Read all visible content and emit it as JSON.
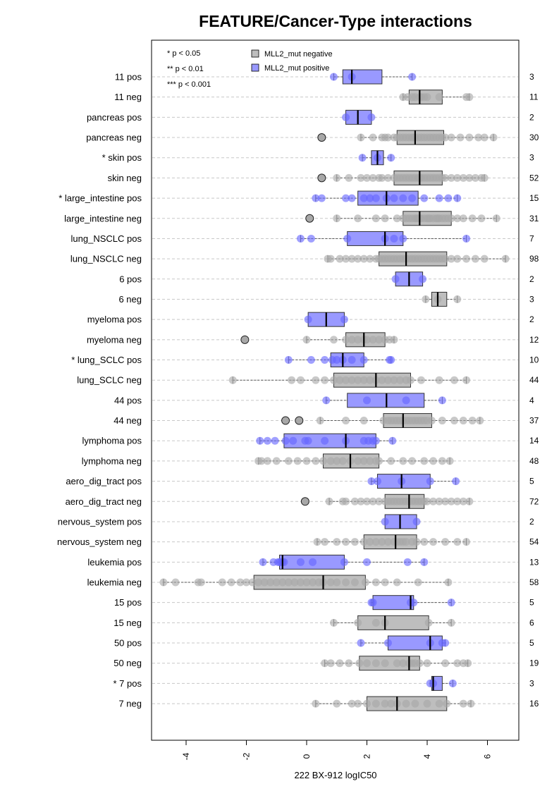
{
  "chart_data": {
    "type": "boxplot",
    "title": "FEATURE/Cancer-Type interactions",
    "xlabel": "222 BX-912 logIC50",
    "ylabel": "",
    "xlim": [
      -5,
      7
    ],
    "xticks": [
      -4,
      -2,
      0,
      2,
      4,
      6
    ],
    "xtick_labels": [
      "-4",
      "-2",
      "0",
      "2",
      "4",
      "6"
    ],
    "grid": "dashed horizontal",
    "legend": {
      "placement": "top-left",
      "significance": [
        "* p < 0.05",
        "** p < 0.01",
        "*** p < 0.001"
      ],
      "groups": [
        {
          "label": "MLL2_mut negative",
          "color": "#bebebe"
        },
        {
          "label": "MLL2_mut positive",
          "color": "#9999ff"
        }
      ]
    },
    "colors": {
      "negative": "#bebebe",
      "positive": "#9999ff",
      "negative_point": "#a8a8a8",
      "positive_point": "#6666ff"
    },
    "rows": [
      {
        "label": "11 pos",
        "count": "3",
        "group": "positive",
        "stats": [
          0.9,
          1.2,
          1.5,
          2.5,
          3.5
        ],
        "points": [
          0.9,
          1.5,
          3.5
        ],
        "outliers": []
      },
      {
        "label": "11 neg",
        "count": "11",
        "group": "negative",
        "stats": [
          3.2,
          3.4,
          3.75,
          4.5,
          5.4
        ],
        "points": [
          3.2,
          3.35,
          3.5,
          3.6,
          3.75,
          3.8,
          3.9,
          4.0,
          4.4,
          5.3,
          5.4
        ],
        "outliers": []
      },
      {
        "label": "pancreas pos",
        "count": "2",
        "group": "positive",
        "stats": [
          1.3,
          1.3,
          1.7,
          2.15,
          2.15
        ],
        "points": [
          1.3,
          2.15
        ],
        "outliers": []
      },
      {
        "label": "pancreas neg",
        "count": "30",
        "group": "negative",
        "stats": [
          1.8,
          3.0,
          3.6,
          4.55,
          6.2
        ],
        "points": [
          1.8,
          2.2,
          2.5,
          2.7,
          2.9,
          3.0,
          3.1,
          3.2,
          3.3,
          3.4,
          3.5,
          3.55,
          3.6,
          3.7,
          3.8,
          3.9,
          4.0,
          4.1,
          4.2,
          4.3,
          4.4,
          4.5,
          4.6,
          4.8,
          5.1,
          5.4,
          5.7,
          5.9,
          6.2,
          2.6
        ],
        "outliers": [
          0.5
        ]
      },
      {
        "label": "* skin pos",
        "count": "3",
        "group": "positive",
        "stats": [
          1.85,
          2.15,
          2.35,
          2.55,
          2.8
        ],
        "points": [
          1.85,
          2.35,
          2.8
        ],
        "outliers": []
      },
      {
        "label": "skin neg",
        "count": "52",
        "group": "negative",
        "stats": [
          1.0,
          2.9,
          3.75,
          4.5,
          5.9
        ],
        "points": [
          1.0,
          1.4,
          1.8,
          2.0,
          2.2,
          2.4,
          2.5,
          2.7,
          2.9,
          3.0,
          3.1,
          3.2,
          3.3,
          3.4,
          3.5,
          3.6,
          3.7,
          3.75,
          3.8,
          3.9,
          4.0,
          4.1,
          4.2,
          4.3,
          4.4,
          4.5,
          4.6,
          4.8,
          5.0,
          5.2,
          5.4,
          5.6,
          5.8,
          5.9
        ],
        "outliers": [
          0.5
        ]
      },
      {
        "label": "* large_intestine pos",
        "count": "15",
        "group": "positive",
        "stats": [
          0.3,
          1.7,
          2.65,
          3.7,
          5.0
        ],
        "points": [
          0.3,
          0.5,
          1.3,
          1.5,
          1.9,
          2.1,
          2.3,
          2.65,
          2.9,
          3.2,
          3.5,
          3.9,
          4.4,
          4.7,
          5.0
        ],
        "outliers": []
      },
      {
        "label": "large_intestine neg",
        "count": "31",
        "group": "negative",
        "stats": [
          1.0,
          3.2,
          3.75,
          4.8,
          6.3
        ],
        "points": [
          1.0,
          1.7,
          2.3,
          2.6,
          3.0,
          3.2,
          3.3,
          3.4,
          3.5,
          3.6,
          3.7,
          3.75,
          3.8,
          3.9,
          4.0,
          4.1,
          4.2,
          4.3,
          4.4,
          4.5,
          4.6,
          4.7,
          4.8,
          5.0,
          5.2,
          5.5,
          5.8,
          6.3,
          3.65,
          4.05,
          4.35
        ],
        "outliers": [
          0.1
        ]
      },
      {
        "label": "lung_NSCLC pos",
        "count": "7",
        "group": "positive",
        "stats": [
          -0.2,
          1.35,
          2.6,
          3.2,
          5.3
        ],
        "points": [
          -0.2,
          0.15,
          1.35,
          2.6,
          2.9,
          3.2,
          5.3
        ],
        "outliers": []
      },
      {
        "label": "lung_NSCLC neg",
        "count": "98",
        "group": "negative",
        "stats": [
          0.7,
          2.4,
          3.3,
          4.65,
          6.6
        ],
        "points": [
          0.7,
          0.8,
          1.1,
          1.3,
          1.5,
          1.7,
          1.9,
          2.1,
          2.3,
          2.4,
          2.5,
          2.6,
          2.7,
          2.8,
          2.9,
          3.0,
          3.1,
          3.2,
          3.3,
          3.4,
          3.5,
          3.6,
          3.7,
          3.8,
          3.9,
          4.0,
          4.1,
          4.2,
          4.3,
          4.4,
          4.5,
          4.6,
          4.8,
          5.0,
          5.3,
          5.6,
          5.9,
          6.6
        ],
        "outliers": []
      },
      {
        "label": "6 pos",
        "count": "2",
        "group": "positive",
        "stats": [
          2.95,
          2.95,
          3.4,
          3.85,
          3.85
        ],
        "points": [
          2.95,
          3.85
        ],
        "outliers": []
      },
      {
        "label": "6 neg",
        "count": "3",
        "group": "negative",
        "stats": [
          3.95,
          4.15,
          4.35,
          4.65,
          5.0
        ],
        "points": [
          3.95,
          4.35,
          5.0
        ],
        "outliers": []
      },
      {
        "label": "myeloma pos",
        "count": "2",
        "group": "positive",
        "stats": [
          0.05,
          0.05,
          0.65,
          1.25,
          1.25
        ],
        "points": [
          0.05,
          1.25
        ],
        "outliers": []
      },
      {
        "label": "myeloma neg",
        "count": "12",
        "group": "negative",
        "stats": [
          0.0,
          1.3,
          1.9,
          2.6,
          2.9
        ],
        "points": [
          0.0,
          0.9,
          1.3,
          1.5,
          1.7,
          1.9,
          2.0,
          2.2,
          2.4,
          2.6,
          2.75,
          2.9
        ],
        "outliers": [
          -2.05
        ]
      },
      {
        "label": "* lung_SCLC pos",
        "count": "10",
        "group": "positive",
        "stats": [
          -0.6,
          0.8,
          1.2,
          1.9,
          2.8
        ],
        "points": [
          -0.6,
          0.15,
          0.6,
          0.85,
          1.0,
          1.2,
          1.5,
          1.9,
          2.75,
          2.8
        ],
        "outliers": []
      },
      {
        "label": "lung_SCLC neg",
        "count": "44",
        "group": "negative",
        "stats": [
          -2.45,
          0.9,
          2.3,
          3.45,
          5.3
        ],
        "points": [
          -2.45,
          -0.5,
          -0.2,
          0.3,
          0.6,
          0.9,
          1.1,
          1.3,
          1.5,
          1.7,
          1.9,
          2.1,
          2.3,
          2.5,
          2.7,
          2.9,
          3.1,
          3.3,
          3.45,
          3.8,
          4.4,
          4.9,
          5.3
        ],
        "outliers": []
      },
      {
        "label": "44 pos",
        "count": "4",
        "group": "positive",
        "stats": [
          0.65,
          1.35,
          2.65,
          3.9,
          4.5
        ],
        "points": [
          0.65,
          2.0,
          3.3,
          4.5
        ],
        "outliers": []
      },
      {
        "label": "44 neg",
        "count": "37",
        "group": "negative",
        "stats": [
          0.45,
          2.55,
          3.2,
          4.15,
          5.75
        ],
        "points": [
          0.45,
          1.3,
          1.9,
          2.55,
          2.7,
          2.8,
          2.9,
          3.0,
          3.1,
          3.2,
          3.3,
          3.4,
          3.5,
          3.6,
          3.7,
          3.8,
          3.9,
          4.0,
          4.15,
          4.5,
          4.9,
          5.2,
          5.5,
          5.75
        ],
        "outliers": [
          -0.7,
          -0.25
        ]
      },
      {
        "label": "lymphoma pos",
        "count": "14",
        "group": "positive",
        "stats": [
          -1.55,
          -0.75,
          1.3,
          2.3,
          2.85
        ],
        "points": [
          -1.55,
          -1.3,
          -1.05,
          -0.7,
          -0.45,
          -0.05,
          0.05,
          0.6,
          1.3,
          1.9,
          2.05,
          2.2,
          2.3,
          2.85
        ],
        "outliers": []
      },
      {
        "label": "lymphoma neg",
        "count": "48",
        "group": "negative",
        "stats": [
          -1.6,
          0.55,
          1.45,
          2.4,
          4.75
        ],
        "points": [
          -1.6,
          -1.5,
          -1.3,
          -1.0,
          -0.6,
          -0.3,
          0.0,
          0.3,
          0.55,
          0.8,
          1.0,
          1.2,
          1.45,
          1.7,
          1.9,
          2.1,
          2.3,
          2.4,
          2.8,
          3.2,
          3.5,
          3.9,
          4.2,
          4.5,
          4.75
        ],
        "outliers": []
      },
      {
        "label": "aero_dig_tract pos",
        "count": "5",
        "group": "positive",
        "stats": [
          2.15,
          2.35,
          3.15,
          4.1,
          4.95
        ],
        "points": [
          2.15,
          2.35,
          3.15,
          4.1,
          4.95
        ],
        "outliers": []
      },
      {
        "label": "aero_dig_tract neg",
        "count": "72",
        "group": "negative",
        "stats": [
          0.75,
          2.6,
          3.4,
          3.9,
          5.4
        ],
        "points": [
          0.75,
          1.2,
          1.3,
          1.6,
          1.8,
          2.0,
          2.2,
          2.4,
          2.6,
          2.7,
          2.8,
          2.9,
          3.0,
          3.1,
          3.2,
          3.3,
          3.4,
          3.5,
          3.6,
          3.7,
          3.8,
          3.9,
          4.0,
          4.2,
          4.4,
          4.6,
          4.8,
          5.0,
          5.2,
          5.4
        ],
        "outliers": [
          -0.05
        ]
      },
      {
        "label": "nervous_system pos",
        "count": "2",
        "group": "positive",
        "stats": [
          2.6,
          2.6,
          3.1,
          3.65,
          3.65
        ],
        "points": [
          2.6,
          3.65
        ],
        "outliers": []
      },
      {
        "label": "nervous_system neg",
        "count": "54",
        "group": "negative",
        "stats": [
          0.35,
          1.9,
          2.95,
          3.65,
          5.3
        ],
        "points": [
          0.35,
          0.6,
          1.0,
          1.3,
          1.6,
          1.9,
          2.1,
          2.3,
          2.5,
          2.7,
          2.9,
          3.0,
          3.1,
          3.2,
          3.3,
          3.5,
          3.65,
          3.9,
          4.2,
          4.6,
          5.0,
          5.3
        ],
        "outliers": []
      },
      {
        "label": "leukemia pos",
        "count": "13",
        "group": "positive",
        "stats": [
          -1.45,
          -0.9,
          -0.8,
          1.25,
          3.9
        ],
        "points": [
          -1.45,
          -1.1,
          -0.95,
          -0.9,
          -0.85,
          -0.8,
          -0.75,
          -0.2,
          0.2,
          1.25,
          2.0,
          3.35,
          3.9
        ],
        "outliers": []
      },
      {
        "label": "leukemia neg",
        "count": "58",
        "group": "negative",
        "stats": [
          -4.75,
          -1.75,
          0.55,
          1.95,
          4.7
        ],
        "points": [
          -4.75,
          -4.35,
          -3.6,
          -3.5,
          -2.8,
          -2.5,
          -2.2,
          -2.0,
          -1.8,
          -1.6,
          -1.4,
          -1.2,
          -1.0,
          -0.8,
          -0.6,
          -0.4,
          -0.2,
          0.0,
          0.2,
          0.4,
          0.55,
          0.8,
          1.0,
          1.3,
          1.6,
          1.95,
          2.3,
          2.6,
          3.0,
          3.7,
          4.7
        ],
        "outliers": []
      },
      {
        "label": "15 pos",
        "count": "5",
        "group": "positive",
        "stats": [
          2.15,
          2.2,
          3.45,
          3.55,
          4.8
        ],
        "points": [
          2.15,
          2.2,
          3.45,
          3.55,
          4.8
        ],
        "outliers": []
      },
      {
        "label": "15 neg",
        "count": "6",
        "group": "negative",
        "stats": [
          0.9,
          1.7,
          2.6,
          4.05,
          4.8
        ],
        "points": [
          0.9,
          1.7,
          2.3,
          2.6,
          4.05,
          4.8
        ],
        "outliers": []
      },
      {
        "label": "50 pos",
        "count": "5",
        "group": "positive",
        "stats": [
          1.8,
          2.7,
          4.1,
          4.5,
          4.6
        ],
        "points": [
          1.8,
          2.7,
          4.1,
          4.5,
          4.6
        ],
        "outliers": []
      },
      {
        "label": "50 neg",
        "count": "19",
        "group": "negative",
        "stats": [
          0.6,
          1.75,
          3.4,
          3.75,
          5.35
        ],
        "points": [
          0.6,
          0.8,
          1.1,
          1.4,
          1.75,
          2.0,
          2.3,
          2.6,
          3.0,
          3.2,
          3.4,
          3.5,
          3.6,
          3.75,
          4.0,
          4.6,
          5.0,
          5.2,
          5.35
        ],
        "outliers": []
      },
      {
        "label": "* 7 pos",
        "count": "3",
        "group": "positive",
        "stats": [
          4.1,
          4.15,
          4.2,
          4.5,
          4.85
        ],
        "points": [
          4.1,
          4.2,
          4.85
        ],
        "outliers": []
      },
      {
        "label": "7 neg",
        "count": "16",
        "group": "negative",
        "stats": [
          0.3,
          2.0,
          3.0,
          4.65,
          5.45
        ],
        "points": [
          0.3,
          1.0,
          1.5,
          1.7,
          2.0,
          2.3,
          2.6,
          2.8,
          3.0,
          3.3,
          3.6,
          4.0,
          4.4,
          4.65,
          5.2,
          5.45
        ],
        "outliers": []
      }
    ]
  }
}
